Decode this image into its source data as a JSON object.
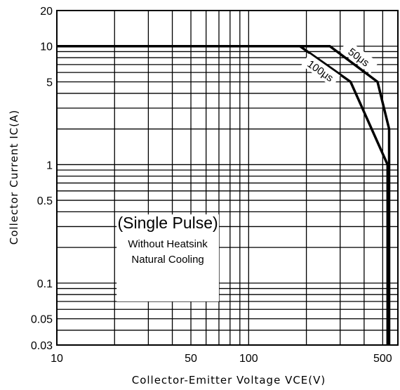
{
  "chart_data": {
    "type": "line",
    "x_scale": "log",
    "y_scale": "log",
    "xlim": [
      10,
      600
    ],
    "ylim": [
      0.03,
      20
    ],
    "grid": true,
    "x_ticks": [
      {
        "value": 10,
        "label": "10"
      },
      {
        "value": 50,
        "label": "50"
      },
      {
        "value": 100,
        "label": "100"
      },
      {
        "value": 500,
        "label": "500"
      }
    ],
    "y_ticks": [
      {
        "value": 20,
        "label": "20"
      },
      {
        "value": 10,
        "label": "10"
      },
      {
        "value": 5,
        "label": "5"
      },
      {
        "value": 1,
        "label": "1"
      },
      {
        "value": 0.5,
        "label": "0.5"
      },
      {
        "value": 0.1,
        "label": "0.1"
      },
      {
        "value": 0.05,
        "label": "0.05"
      },
      {
        "value": 0.03,
        "label": "0.03"
      }
    ],
    "xlabel": "Collector-Emitter Voltage VCE(V)",
    "ylabel": "Collector Current IC(A)",
    "series": [
      {
        "name": "50μs",
        "x": [
          10,
          265,
          470,
          540,
          540
        ],
        "y": [
          10,
          10,
          5,
          2,
          0.03
        ]
      },
      {
        "name": "100μs",
        "x": [
          10,
          185,
          340,
          530,
          530
        ],
        "y": [
          10,
          10,
          5,
          1,
          0.03
        ]
      }
    ],
    "annotation": {
      "title": "(Single Pulse)",
      "lines": [
        "Without Heatsink",
        "Natural Cooling"
      ]
    }
  }
}
